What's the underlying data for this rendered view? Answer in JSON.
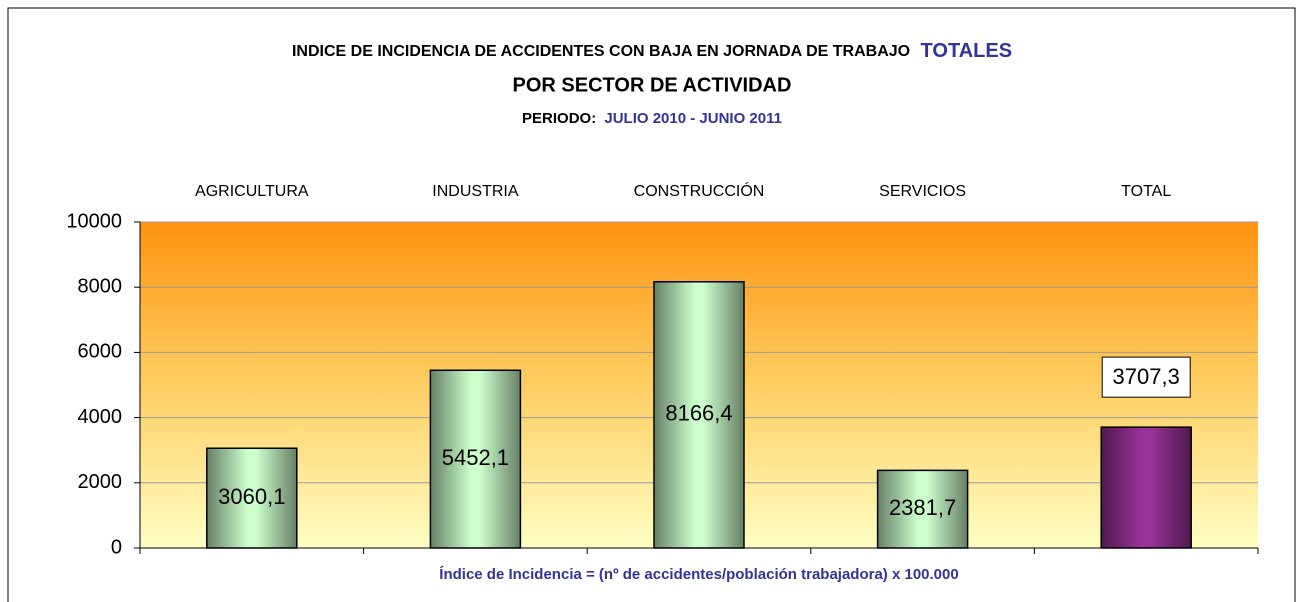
{
  "chart_data": {
    "type": "bar",
    "title": "INDICE DE INCIDENCIA DE ACCIDENTES CON BAJA EN JORNADA DE TRABAJO",
    "title_highlight": "TOTALES",
    "subtitle": "POR SECTOR DE ACTIVIDAD",
    "period_label": "PERIODO:",
    "period": "JULIO 2010 - JUNIO 2011",
    "x_label": "Índice de Incidencia = (nº de accidentes/población trabajadora) x 100.000",
    "categories": [
      "AGRICULTURA",
      "INDUSTRIA",
      "CONSTRUCCIÓN",
      "SERVICIOS",
      "TOTAL"
    ],
    "values": [
      3060.1,
      5452.1,
      8166.4,
      2381.7,
      3707.3
    ],
    "value_labels": [
      "3060,1",
      "5452,1",
      "8166,4",
      "2381,7",
      "3707,3"
    ],
    "colors": [
      "#ccffcc",
      "#ccffcc",
      "#ccffcc",
      "#ccffcc",
      "#993399"
    ],
    "value_label_box": [
      false,
      false,
      false,
      false,
      true
    ],
    "ylim": [
      0,
      10000
    ],
    "yticks": [
      0,
      2000,
      4000,
      6000,
      8000,
      10000
    ],
    "grid": true
  }
}
